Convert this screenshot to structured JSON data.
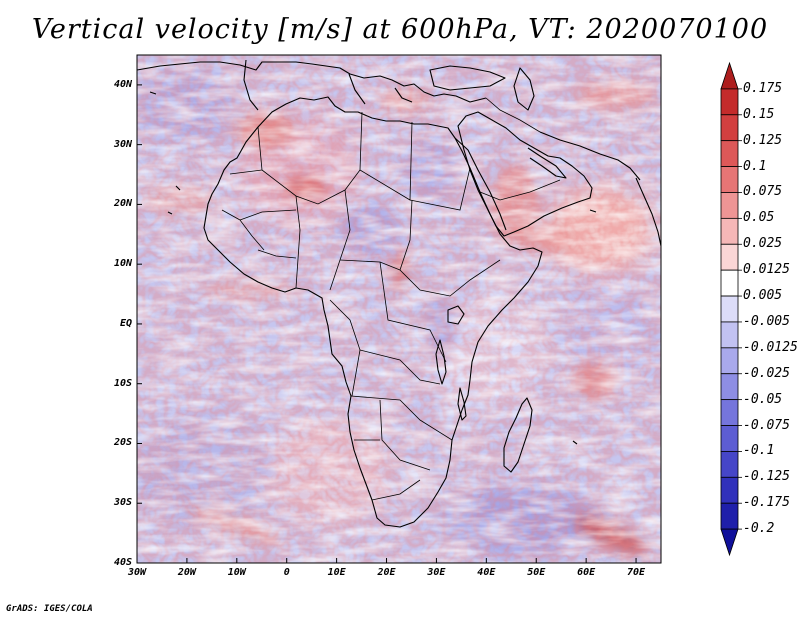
{
  "title": "Vertical velocity [m/s] at 600hPa, VT: 2020070100",
  "credit": "GrADS: IGES/COLA",
  "map": {
    "variable": "Vertical velocity",
    "units": "m/s",
    "level": "600hPa",
    "valid_time": "2020070100",
    "lon_range": [
      -30,
      75
    ],
    "lat_range": [
      -40,
      45
    ],
    "x_ticks": [
      {
        "label": "30W",
        "lon": -30
      },
      {
        "label": "20W",
        "lon": -20
      },
      {
        "label": "10W",
        "lon": -10
      },
      {
        "label": "0",
        "lon": 0
      },
      {
        "label": "10E",
        "lon": 10
      },
      {
        "label": "20E",
        "lon": 20
      },
      {
        "label": "30E",
        "lon": 30
      },
      {
        "label": "40E",
        "lon": 40
      },
      {
        "label": "50E",
        "lon": 50
      },
      {
        "label": "60E",
        "lon": 60
      },
      {
        "label": "70E",
        "lon": 70
      }
    ],
    "y_ticks": [
      {
        "label": "40N",
        "lat": 40
      },
      {
        "label": "30N",
        "lat": 30
      },
      {
        "label": "20N",
        "lat": 20
      },
      {
        "label": "10N",
        "lat": 10
      },
      {
        "label": "EQ",
        "lat": 0
      },
      {
        "label": "10S",
        "lat": -10
      },
      {
        "label": "20S",
        "lat": -20
      },
      {
        "label": "30S",
        "lat": -30
      },
      {
        "label": "40S",
        "lat": -40
      }
    ]
  },
  "colorbar": {
    "levels": [
      "0.175",
      "0.15",
      "0.125",
      "0.1",
      "0.075",
      "0.05",
      "0.025",
      "0.0125",
      "0.005",
      "-0.005",
      "-0.0125",
      "-0.025",
      "-0.05",
      "-0.075",
      "-0.1",
      "-0.125",
      "-0.175",
      "-0.2"
    ],
    "colors": [
      "#ad1e1e",
      "#c42b2b",
      "#d23f3f",
      "#dd5858",
      "#e67575",
      "#ee9595",
      "#f5b7b7",
      "#fad6d6",
      "#ffffff",
      "#dcdcf8",
      "#c2c2f2",
      "#a9a9ec",
      "#8e8ee4",
      "#7575dc",
      "#5d5dd3",
      "#4646c8",
      "#3131bb",
      "#1f1faa",
      "#10109a"
    ]
  }
}
